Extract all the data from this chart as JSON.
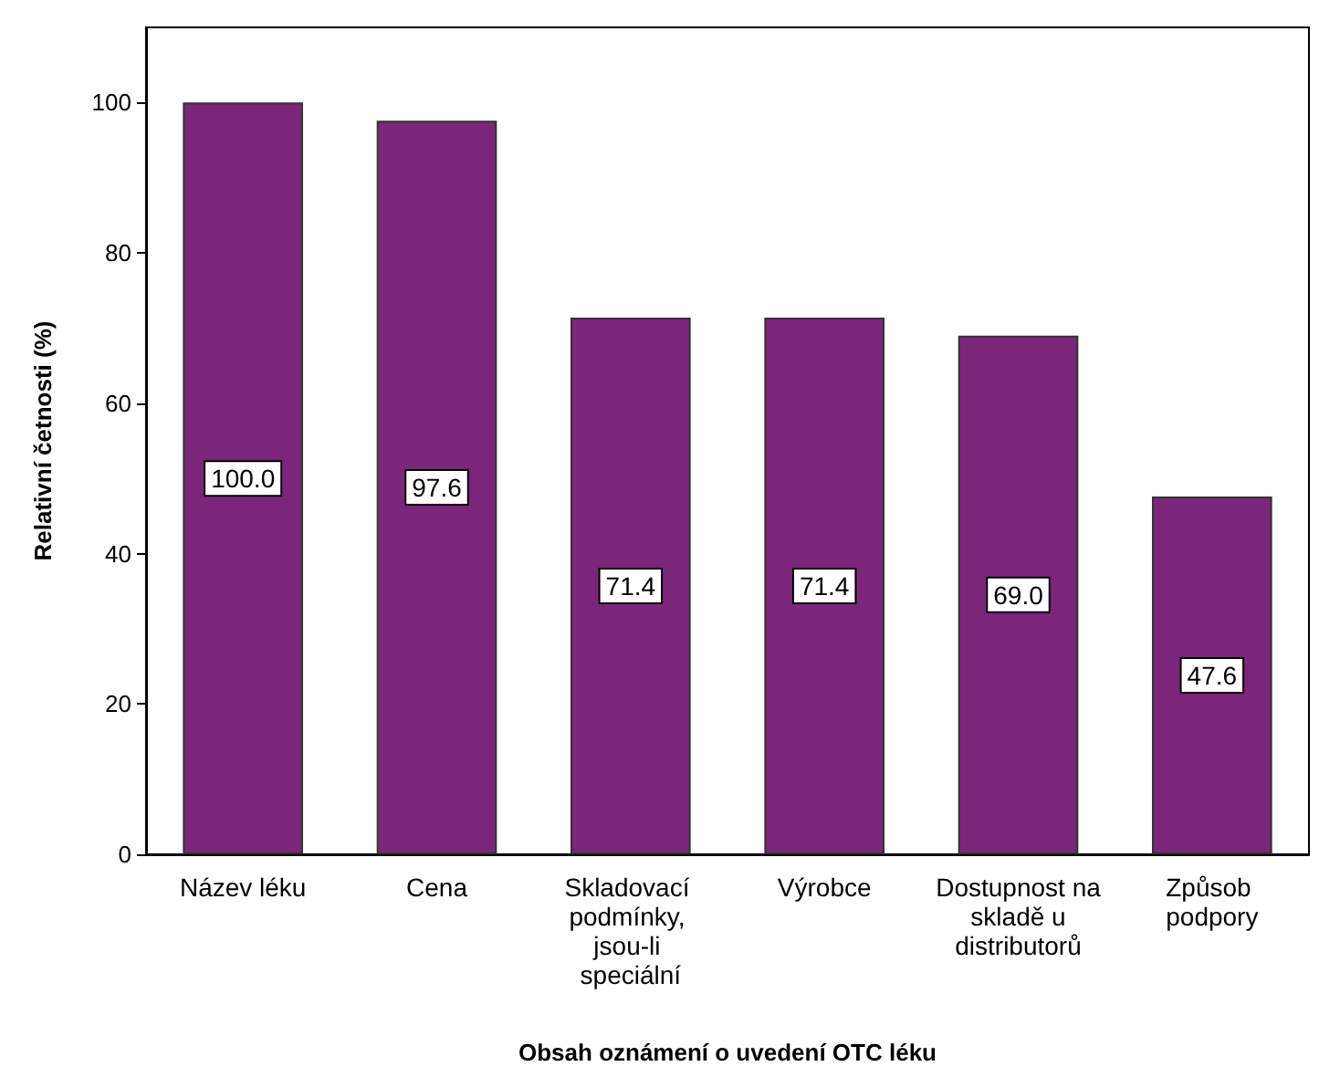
{
  "chart_data": {
    "type": "bar",
    "xlabel": "Obsah oznámení o uvedení OTC léku",
    "ylabel": "Relativní četnosti (%)",
    "categories": [
      "Název léku",
      "Cena",
      "Skladovací podmínky, jsou-li speciální",
      "Výrobce",
      "Dostupnost na skladě u distributorů",
      "Způsob podpory"
    ],
    "values": [
      100.0,
      97.6,
      71.4,
      71.4,
      69.0,
      47.6
    ],
    "value_labels": [
      "100.0",
      "97.6",
      "71.4",
      "71.4",
      "69.0",
      "47.6"
    ],
    "color": "#7b267b",
    "ylim": [
      0,
      110
    ],
    "yticks": [
      0,
      20,
      40,
      60,
      80,
      100
    ],
    "grid": false
  }
}
